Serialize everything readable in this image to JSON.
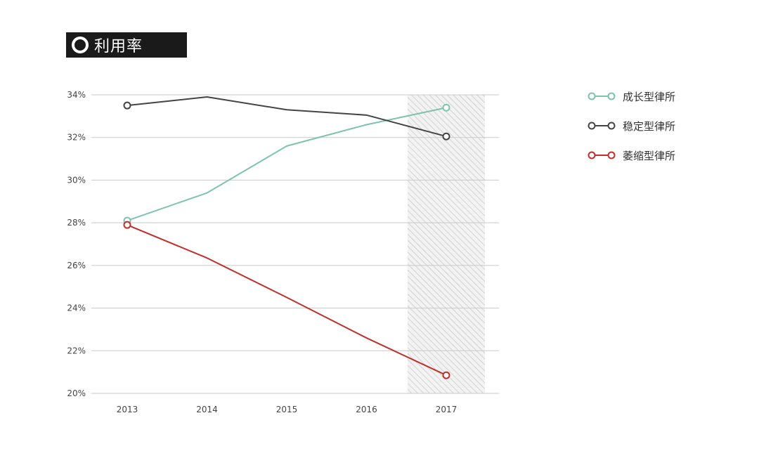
{
  "title": "利用率",
  "chart_data": {
    "type": "line",
    "x": [
      "2013",
      "2014",
      "2015",
      "2016",
      "2017"
    ],
    "y_ticks": [
      "20%",
      "22%",
      "24%",
      "26%",
      "28%",
      "30%",
      "32%",
      "34%"
    ],
    "ylim": [
      20,
      34
    ],
    "grid": true,
    "legend_position": "right",
    "highlight_category": "2017",
    "series": [
      {
        "name": "成长型律所",
        "color": "#7dc3ad",
        "values": [
          28.1,
          29.4,
          31.6,
          32.6,
          33.4
        ],
        "marker_indices": [
          0,
          4
        ]
      },
      {
        "name": "稳定型律所",
        "color": "#444444",
        "values": [
          33.5,
          33.9,
          33.3,
          33.05,
          32.05
        ],
        "marker_indices": [
          0,
          4
        ]
      },
      {
        "name": "萎缩型律所",
        "color": "#c0302b",
        "values": [
          27.9,
          26.35,
          24.5,
          22.6,
          20.85
        ],
        "marker_indices": [
          0,
          4
        ]
      }
    ]
  }
}
